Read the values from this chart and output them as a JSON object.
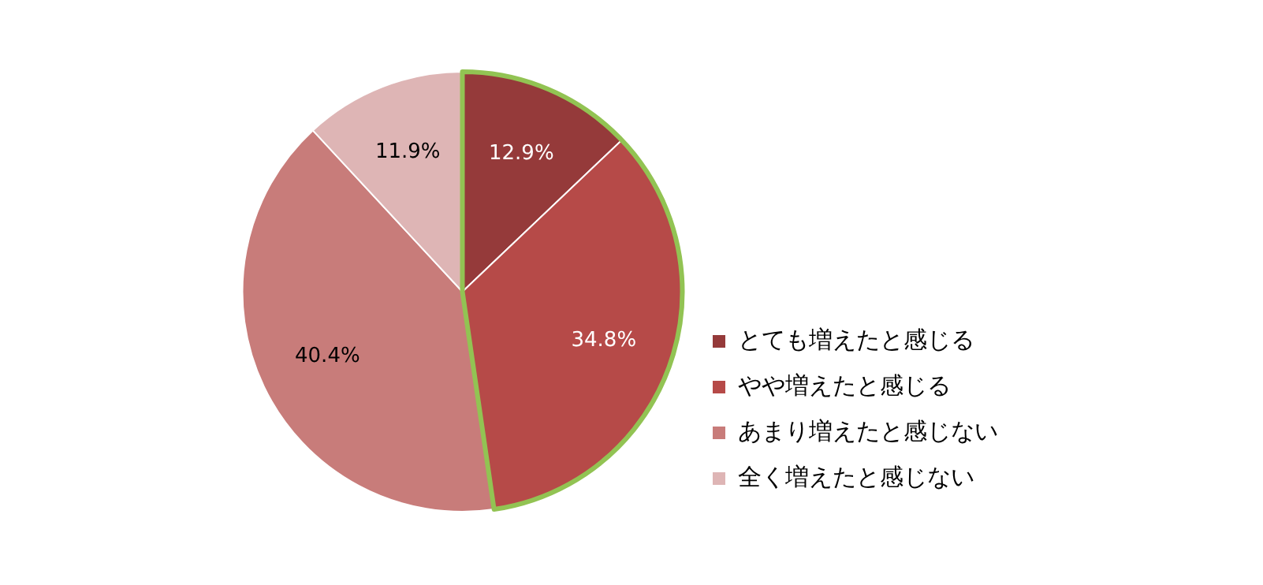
{
  "chart_data": {
    "type": "pie",
    "categories": [
      "とても増えたと感じる",
      "やや増えたと感じる",
      "あまり増えたと感じない",
      "全く増えたと感じない"
    ],
    "values": [
      12.9,
      34.8,
      40.4,
      11.9
    ],
    "colors": [
      "#953a3a",
      "#b64a48",
      "#c87c7a",
      "#deb5b5"
    ],
    "value_labels": [
      "12.9%",
      "34.8%",
      "40.4%",
      "11.9%"
    ],
    "legend": "bottom right"
  }
}
